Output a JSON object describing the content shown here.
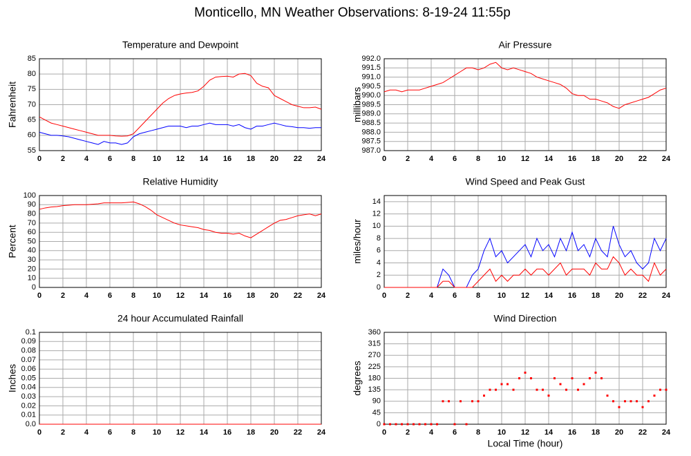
{
  "title": "Monticello, MN Weather Observations: 8-19-24 11:55p",
  "chart_data": [
    {
      "type": "line",
      "title": "Temperature and Dewpoint",
      "y_label": "Fahrenheit",
      "x": [
        0,
        0.5,
        1,
        1.5,
        2,
        2.5,
        3,
        3.5,
        4,
        4.5,
        5,
        5.5,
        6,
        6.5,
        7,
        7.5,
        8,
        8.5,
        9,
        9.5,
        10,
        10.5,
        11,
        11.5,
        12,
        12.5,
        13,
        13.5,
        14,
        14.5,
        15,
        15.5,
        16,
        16.5,
        17,
        17.5,
        18,
        18.5,
        19,
        19.5,
        20,
        20.5,
        21,
        21.5,
        22,
        22.5,
        23,
        23.5,
        24
      ],
      "series": [
        {
          "color": "#ff0000",
          "values": [
            66,
            65,
            64,
            63.5,
            63,
            62.5,
            62,
            61.5,
            61,
            60.5,
            60,
            60,
            60,
            59.8,
            59.7,
            59.8,
            60.5,
            62.5,
            64.5,
            66.5,
            68.5,
            70.5,
            72,
            73,
            73.5,
            73.8,
            74,
            74.5,
            76,
            78,
            79,
            79.2,
            79.3,
            79,
            80,
            80.2,
            79.5,
            77,
            76,
            75.5,
            73,
            72,
            71,
            70,
            69.5,
            69,
            69,
            69.2,
            68.5
          ]
        },
        {
          "color": "#0000ff",
          "values": [
            61,
            60.5,
            60,
            60,
            59.8,
            59.5,
            59,
            58.5,
            58,
            57.5,
            57,
            58,
            57.5,
            57.5,
            57,
            57.5,
            59.5,
            60.5,
            61,
            61.5,
            62,
            62.5,
            63,
            63,
            63,
            62.5,
            63,
            63,
            63.5,
            64,
            63.5,
            63.5,
            63.5,
            63,
            63.5,
            62.5,
            62,
            63,
            63,
            63.5,
            64,
            63.5,
            63,
            62.8,
            62.5,
            62.5,
            62.3,
            62.5,
            62.5
          ]
        }
      ],
      "xlim": [
        0,
        24
      ],
      "xticks": [
        0,
        2,
        4,
        6,
        8,
        10,
        12,
        14,
        16,
        18,
        20,
        22,
        24
      ],
      "ylim": [
        55,
        85
      ],
      "yticks": [
        55,
        60,
        65,
        70,
        75,
        80,
        85
      ],
      "grid": true
    },
    {
      "type": "line",
      "title": "Air Pressure",
      "y_label": "millibars",
      "x": [
        0,
        0.5,
        1,
        1.5,
        2,
        2.5,
        3,
        3.5,
        4,
        4.5,
        5,
        5.5,
        6,
        6.5,
        7,
        7.5,
        8,
        8.5,
        9,
        9.5,
        10,
        10.5,
        11,
        11.5,
        12,
        12.5,
        13,
        13.5,
        14,
        14.5,
        15,
        15.5,
        16,
        16.5,
        17,
        17.5,
        18,
        18.5,
        19,
        19.5,
        20,
        20.5,
        21,
        21.5,
        22,
        22.5,
        23,
        23.5,
        24
      ],
      "series": [
        {
          "color": "#ff0000",
          "values": [
            990.2,
            990.3,
            990.3,
            990.2,
            990.3,
            990.3,
            990.3,
            990.4,
            990.5,
            990.6,
            990.7,
            990.9,
            991.1,
            991.3,
            991.5,
            991.5,
            991.4,
            991.5,
            991.7,
            991.8,
            991.5,
            991.4,
            991.5,
            991.4,
            991.3,
            991.2,
            991.0,
            990.9,
            990.8,
            990.7,
            990.6,
            990.4,
            990.1,
            990.0,
            990.0,
            989.8,
            989.8,
            989.7,
            989.6,
            989.4,
            989.3,
            989.5,
            989.6,
            989.7,
            989.8,
            989.9,
            990.1,
            990.3,
            990.4
          ]
        }
      ],
      "xlim": [
        0,
        24
      ],
      "xticks": [
        0,
        2,
        4,
        6,
        8,
        10,
        12,
        14,
        16,
        18,
        20,
        22,
        24
      ],
      "ylim": [
        987,
        992
      ],
      "yticks": [
        {
          "value": 987,
          "label": "987.0"
        },
        987.5,
        {
          "value": 988,
          "label": "988.0"
        },
        988.5,
        {
          "value": 989,
          "label": "989.0"
        },
        989.5,
        {
          "value": 990,
          "label": "990.0"
        },
        990.5,
        {
          "value": 991,
          "label": "991.0"
        },
        991.5,
        {
          "value": 992,
          "label": "992.0"
        }
      ],
      "grid": true
    },
    {
      "type": "line",
      "title": "Relative Humidity",
      "y_label": "Percent",
      "x": [
        0,
        0.5,
        1,
        1.5,
        2,
        2.5,
        3,
        3.5,
        4,
        4.5,
        5,
        5.5,
        6,
        6.5,
        7,
        7.5,
        8,
        8.5,
        9,
        9.5,
        10,
        10.5,
        11,
        11.5,
        12,
        12.5,
        13,
        13.5,
        14,
        14.5,
        15,
        15.5,
        16,
        16.5,
        17,
        17.5,
        18,
        18.5,
        19,
        19.5,
        20,
        20.5,
        21,
        21.5,
        22,
        22.5,
        23,
        23.5,
        24
      ],
      "series": [
        {
          "color": "#ff0000",
          "values": [
            85,
            86.5,
            87.5,
            88,
            89,
            89.5,
            90,
            90,
            90,
            90.5,
            91,
            92,
            92,
            92,
            92,
            92.5,
            93,
            91,
            88,
            84,
            79,
            76,
            73,
            70,
            68,
            67,
            66,
            65,
            63,
            62,
            60,
            59,
            59,
            58,
            59,
            56,
            54,
            58,
            62,
            66,
            70,
            73,
            74,
            76,
            78,
            79,
            80,
            78,
            80
          ]
        }
      ],
      "xlim": [
        0,
        24
      ],
      "xticks": [
        0,
        2,
        4,
        6,
        8,
        10,
        12,
        14,
        16,
        18,
        20,
        22,
        24
      ],
      "ylim": [
        0,
        100
      ],
      "yticks": [
        0,
        10,
        20,
        30,
        40,
        50,
        60,
        70,
        80,
        90,
        100
      ],
      "grid": true
    },
    {
      "type": "line",
      "title": "Wind Speed and Peak Gust",
      "y_label": "miles/hour",
      "x": [
        0,
        0.5,
        1,
        1.5,
        2,
        2.5,
        3,
        3.5,
        4,
        4.5,
        5,
        5.5,
        6,
        6.5,
        7,
        7.5,
        8,
        8.5,
        9,
        9.5,
        10,
        10.5,
        11,
        11.5,
        12,
        12.5,
        13,
        13.5,
        14,
        14.5,
        15,
        15.5,
        16,
        16.5,
        17,
        17.5,
        18,
        18.5,
        19,
        19.5,
        20,
        20.5,
        21,
        21.5,
        22,
        22.5,
        23,
        23.5,
        24
      ],
      "series": [
        {
          "color": "#0000ff",
          "values": [
            0,
            0,
            0,
            0,
            0,
            0,
            0,
            0,
            0,
            0,
            3,
            2,
            0,
            0,
            0,
            2,
            3,
            6,
            8,
            5,
            6,
            4,
            5,
            6,
            7,
            5,
            8,
            6,
            7,
            5,
            8,
            6,
            9,
            6,
            7,
            5,
            8,
            6,
            5,
            10,
            7,
            5,
            6,
            4,
            3,
            4,
            8,
            6,
            8
          ]
        },
        {
          "color": "#ff0000",
          "values": [
            0,
            0,
            0,
            0,
            0,
            0,
            0,
            0,
            0,
            0,
            1,
            1,
            0,
            0,
            0,
            0,
            1,
            2,
            3,
            1,
            2,
            1,
            2,
            2,
            3,
            2,
            3,
            3,
            2,
            3,
            4,
            2,
            3,
            3,
            3,
            2,
            4,
            3,
            3,
            5,
            4,
            2,
            3,
            2,
            2,
            1,
            4,
            2,
            3
          ]
        }
      ],
      "xlim": [
        0,
        24
      ],
      "xticks": [
        0,
        2,
        4,
        6,
        8,
        10,
        12,
        14,
        16,
        18,
        20,
        22,
        24
      ],
      "ylim": [
        0,
        15
      ],
      "yticks": [
        0,
        2,
        4,
        6,
        8,
        10,
        12,
        14
      ],
      "grid": true
    },
    {
      "type": "line",
      "title": "24 hour Accumulated Rainfall",
      "y_label": "Inches",
      "x": [
        0,
        0.5,
        1,
        1.5,
        2,
        2.5,
        3,
        3.5,
        4,
        4.5,
        5,
        5.5,
        6,
        6.5,
        7,
        7.5,
        8,
        8.5,
        9,
        9.5,
        10,
        10.5,
        11,
        11.5,
        12,
        12.5,
        13,
        13.5,
        14,
        14.5,
        15,
        15.5,
        16,
        16.5,
        17,
        17.5,
        18,
        18.5,
        19,
        19.5,
        20,
        20.5,
        21,
        21.5,
        22,
        22.5,
        23,
        23.5,
        24
      ],
      "series": [
        {
          "color": "#ff0000",
          "values": [
            0,
            0,
            0,
            0,
            0,
            0,
            0,
            0,
            0,
            0,
            0,
            0,
            0,
            0,
            0,
            0,
            0,
            0,
            0,
            0,
            0,
            0,
            0,
            0,
            0,
            0,
            0,
            0,
            0,
            0,
            0,
            0,
            0,
            0,
            0,
            0,
            0,
            0,
            0,
            0,
            0,
            0,
            0,
            0,
            0,
            0,
            0,
            0,
            0
          ]
        }
      ],
      "xlim": [
        0,
        24
      ],
      "xticks": [
        0,
        2,
        4,
        6,
        8,
        10,
        12,
        14,
        16,
        18,
        20,
        22,
        24
      ],
      "ylim": [
        0,
        0.1
      ],
      "yticks": [
        {
          "value": 0,
          "label": "0.0"
        },
        0.01,
        0.02,
        0.03,
        0.04,
        0.05,
        0.06,
        0.07,
        0.08,
        0.09,
        0.1
      ],
      "grid": true
    },
    {
      "type": "scatter",
      "title": "Wind Direction",
      "y_label": "degrees",
      "x_label": "Local Time (hour)",
      "x": [
        0,
        0.5,
        1,
        1.5,
        2,
        2.5,
        3,
        3.5,
        4,
        4.5,
        5,
        5.5,
        6,
        6.5,
        7,
        7.5,
        8,
        8.5,
        9,
        9.5,
        10,
        10.5,
        11,
        11.5,
        12,
        12.5,
        13,
        13.5,
        14,
        14.5,
        15,
        15.5,
        16,
        16.5,
        17,
        17.5,
        18,
        18.5,
        19,
        19.5,
        20,
        20.5,
        21,
        21.5,
        22,
        22.5,
        23,
        23.5,
        24
      ],
      "series": [
        {
          "color": "#ff0000",
          "values": [
            0,
            0,
            0,
            0,
            0,
            0,
            0,
            0,
            0,
            0,
            90,
            90,
            0,
            90,
            0,
            90,
            90,
            112,
            135,
            135,
            157,
            157,
            135,
            180,
            202,
            180,
            135,
            135,
            112,
            180,
            157,
            135,
            180,
            135,
            157,
            180,
            202,
            180,
            112,
            90,
            67,
            90,
            90,
            90,
            67,
            90,
            112,
            135,
            135
          ]
        }
      ],
      "xlim": [
        0,
        24
      ],
      "xticks": [
        0,
        2,
        4,
        6,
        8,
        10,
        12,
        14,
        16,
        18,
        20,
        22,
        24
      ],
      "ylim": [
        0,
        360
      ],
      "yticks": [
        0,
        45,
        90,
        135,
        180,
        225,
        270,
        315,
        360
      ],
      "grid": true
    }
  ]
}
